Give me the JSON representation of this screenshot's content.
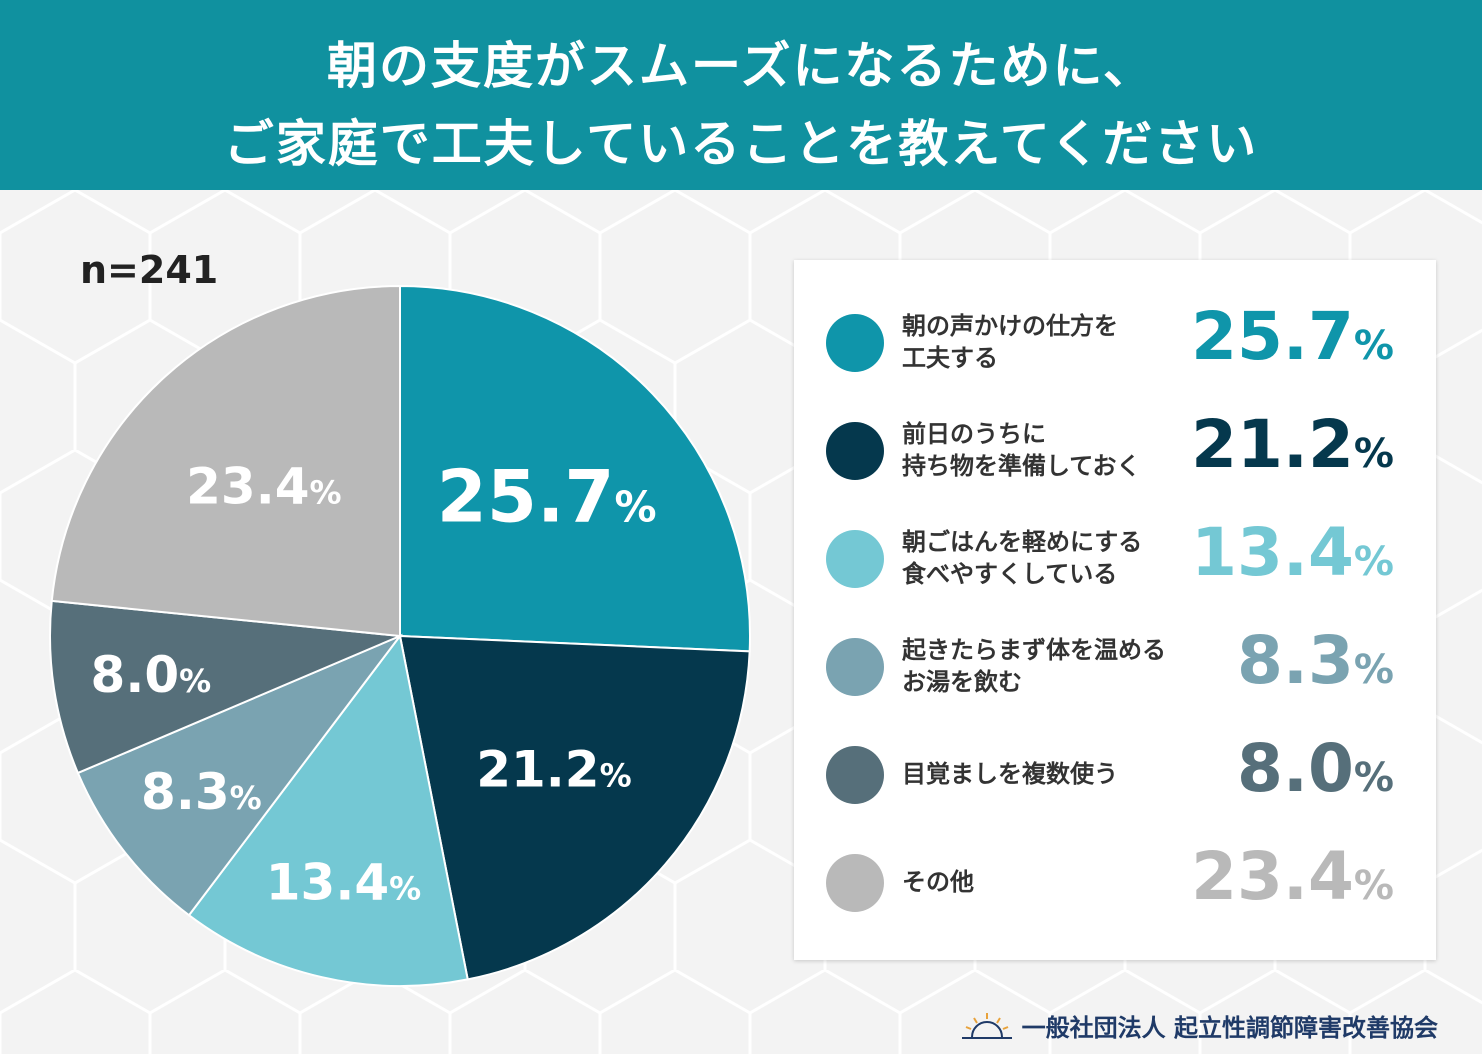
{
  "header": {
    "line1": "朝の支度がスムーズになるために、",
    "line2": "ご家庭で工夫していることを教えてください"
  },
  "sample_size": "n=241",
  "chart_data": {
    "type": "pie",
    "unit": "%",
    "slices": [
      {
        "label": "朝の声かけの仕方を工夫する",
        "label_lines": [
          "朝の声かけの仕方を",
          "工夫する"
        ],
        "value": 25.7,
        "color": "#0f95aa"
      },
      {
        "label": "前日のうちに持ち物を準備しておく",
        "label_lines": [
          "前日のうちに",
          "持ち物を準備しておく"
        ],
        "value": 21.2,
        "color": "#05384d"
      },
      {
        "label": "朝ごはんを軽めにする 食べやすくしている",
        "label_lines": [
          "朝ごはんを軽めにする",
          "食べやすくしている"
        ],
        "value": 13.4,
        "color": "#74c8d4"
      },
      {
        "label": "起きたらまず体を温めるお湯を飲む",
        "label_lines": [
          "起きたらまず体を温める",
          "お湯を飲む"
        ],
        "value": 8.3,
        "color": "#7aa3b1"
      },
      {
        "label": "目覚ましを複数使う",
        "label_lines": [
          "目覚ましを複数使う"
        ],
        "value": 8.0,
        "color": "#566f7a"
      },
      {
        "label": "その他",
        "label_lines": [
          "その他"
        ],
        "value": 23.4,
        "color": "#b9b9b9"
      }
    ]
  },
  "footer": {
    "organization": "一般社団法人 起立性調節障害改善協会"
  }
}
